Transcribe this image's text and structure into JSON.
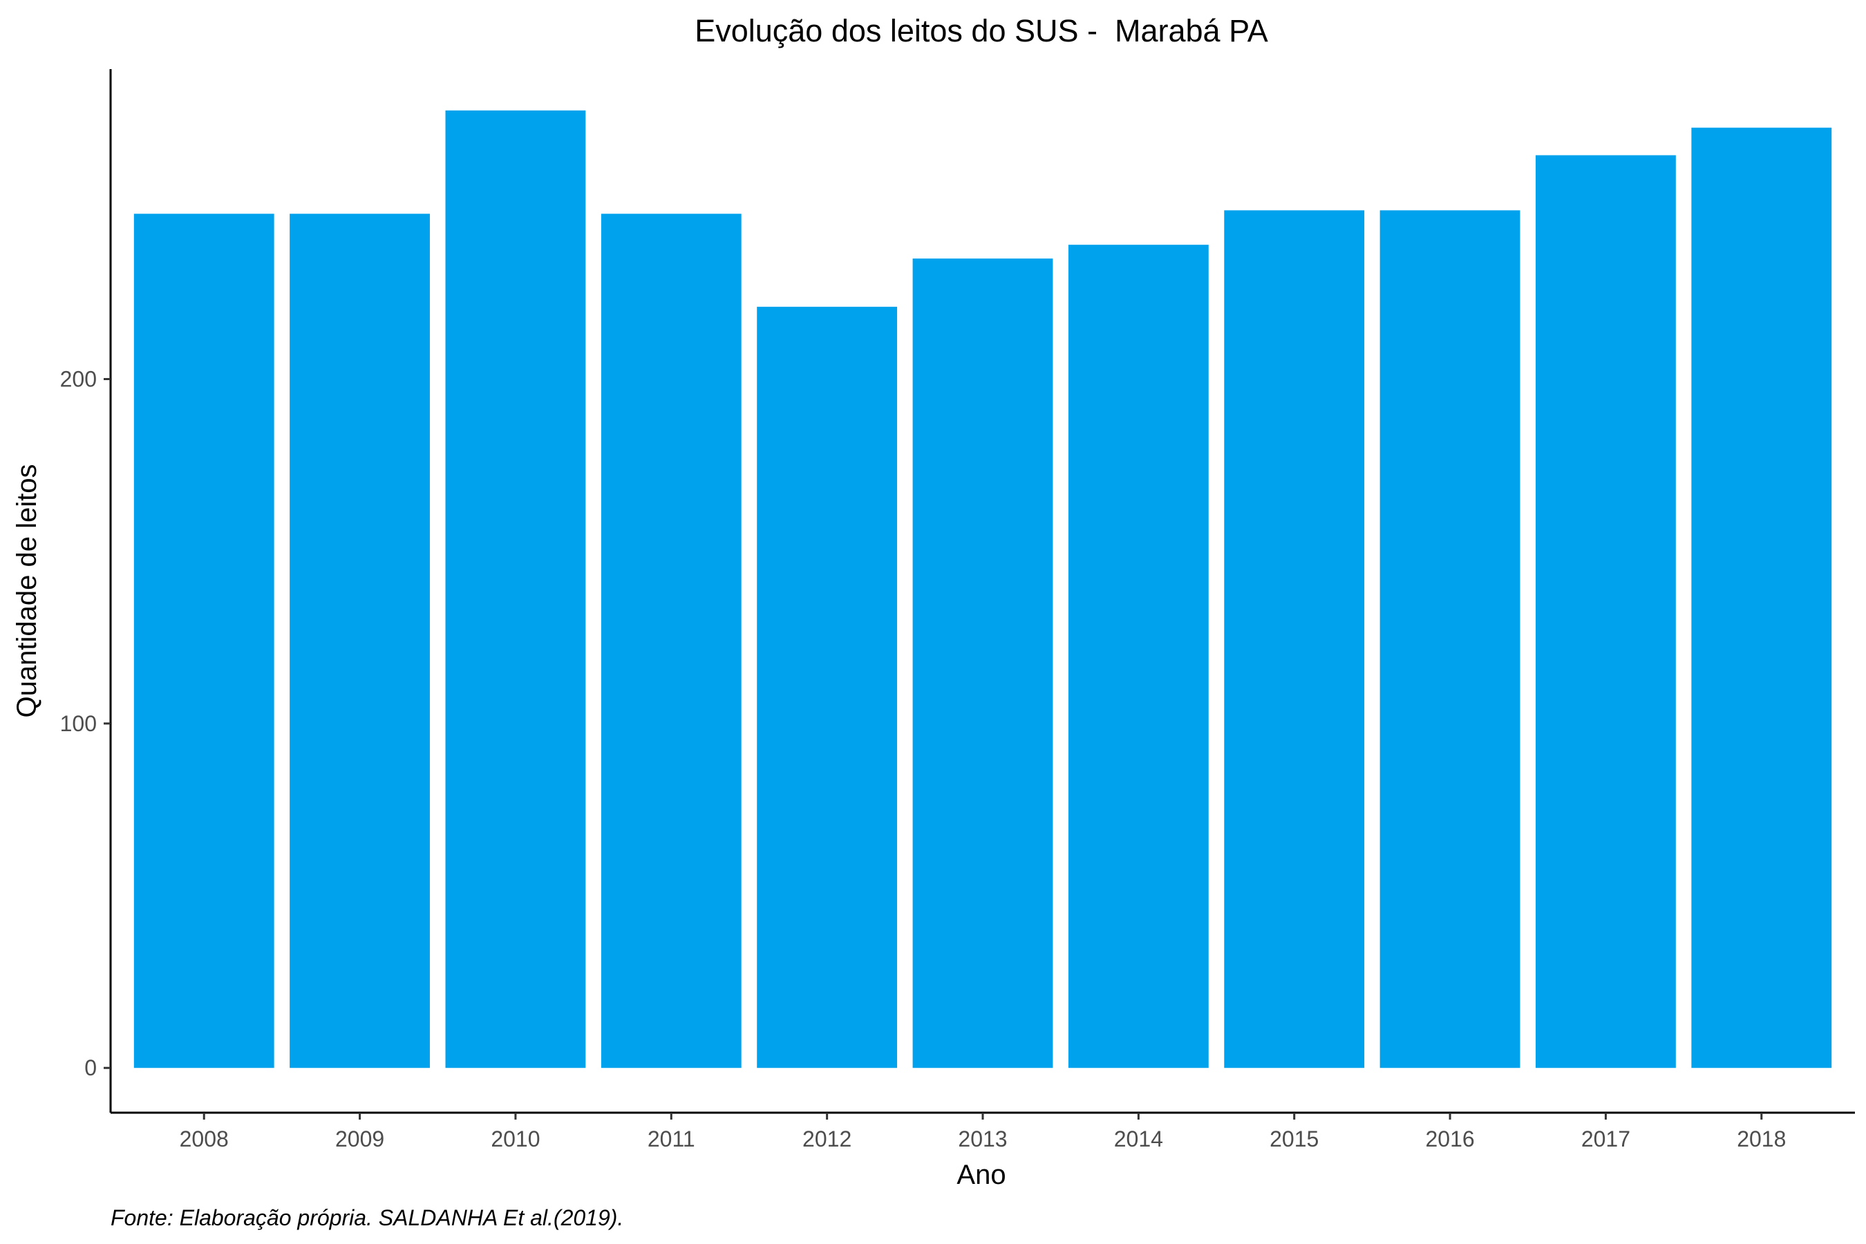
{
  "chart_data": {
    "type": "bar",
    "title": "Evolução dos leitos do SUS -  Marabá PA",
    "xlabel": "Ano",
    "ylabel": "Quantidade de leitos",
    "caption": "Fonte: Elaboração própria. SALDANHA Et al.(2019).",
    "categories": [
      "2008",
      "2009",
      "2010",
      "2011",
      "2012",
      "2013",
      "2014",
      "2015",
      "2016",
      "2017",
      "2018"
    ],
    "values": [
      248,
      248,
      278,
      248,
      221,
      235,
      239,
      249,
      249,
      265,
      273
    ],
    "y_ticks": [
      0,
      100,
      200
    ],
    "ylim": [
      -13,
      290
    ],
    "bar_color": "#00A2EE",
    "grid": false,
    "legend": "none"
  }
}
